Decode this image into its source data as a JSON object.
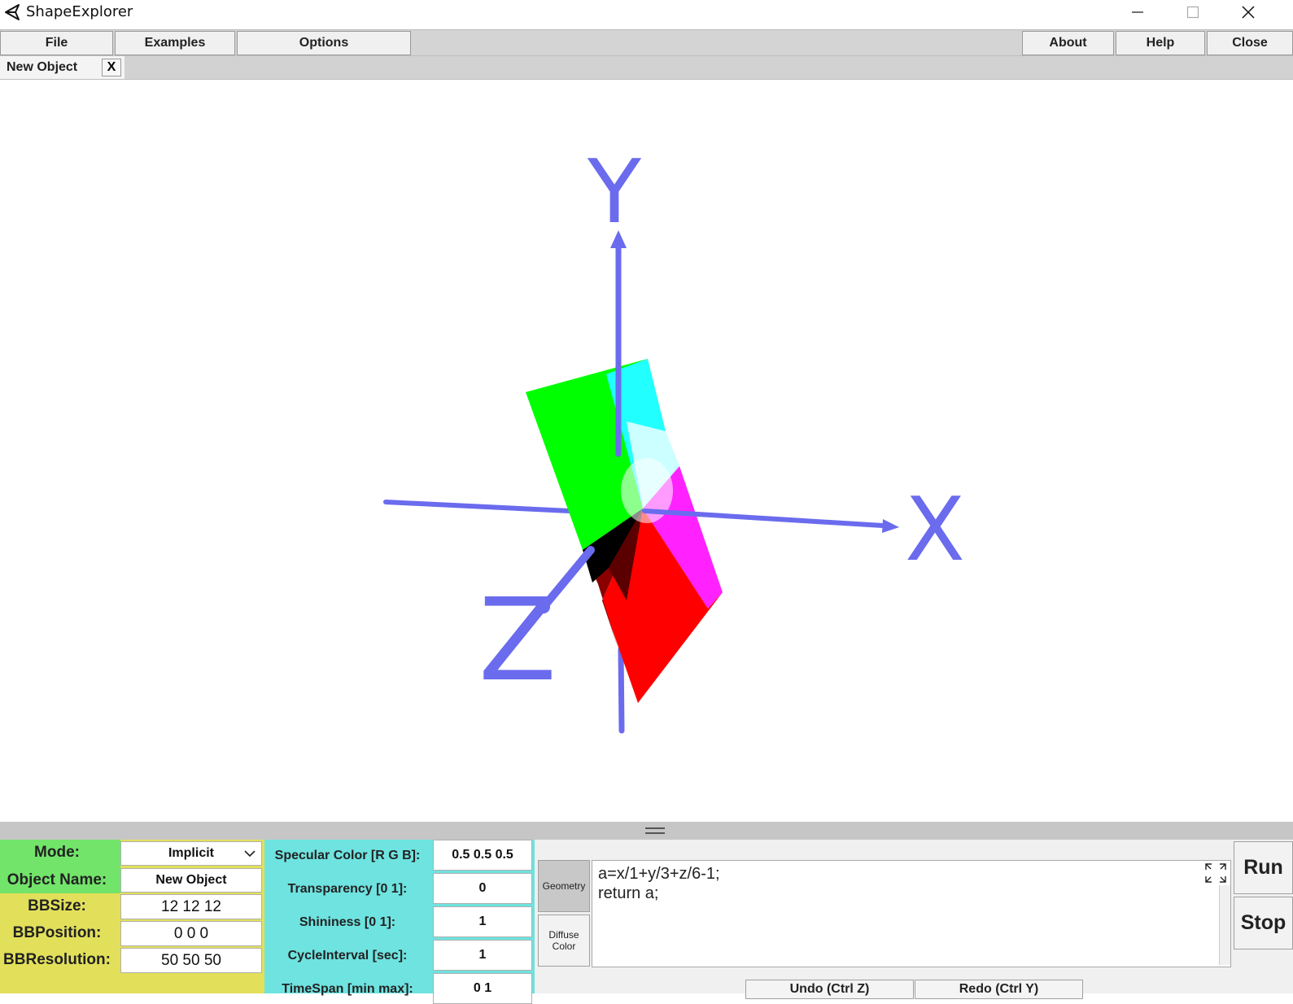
{
  "window": {
    "title": "ShapeExplorer"
  },
  "menu": {
    "file": "File",
    "examples": "Examples",
    "options": "Options",
    "about": "About",
    "help": "Help",
    "close": "Close"
  },
  "tabs": [
    {
      "label": "New Object",
      "close": "X"
    }
  ],
  "scene": {
    "axis_labels": {
      "x": "X",
      "y": "Y",
      "z": "Z"
    },
    "axis_color": "#6b6bee"
  },
  "properties": {
    "mode_label": "Mode:",
    "mode_value": "Implicit",
    "object_name_label": "Object Name:",
    "object_name_value": "New Object",
    "bbsize_label": "BBSize:",
    "bbsize_value": "12 12 12",
    "bbposition_label": "BBPosition:",
    "bbposition_value": "0 0 0",
    "bbresolution_label": "BBResolution:",
    "bbresolution_value": "50 50 50"
  },
  "material": {
    "specular_label": "Specular Color [R G B]:",
    "specular_value": "0.5 0.5 0.5",
    "transparency_label": "Transparency [0 1]:",
    "transparency_value": "0",
    "shininess_label": "Shininess [0 1]:",
    "shininess_value": "1",
    "cycle_label": "CycleInterval [sec]:",
    "cycle_value": "1",
    "timespan_label": "TimeSpan [min max]:",
    "timespan_value": "0 1"
  },
  "editor": {
    "geometry_tab": "Geometry",
    "diffuse_tab": "Diffuse Color",
    "code_lines": [
      "a=x/1+y/3+z/6-1;",
      "return a;"
    ],
    "run": "Run",
    "stop": "Stop",
    "undo": "Undo (Ctrl Z)",
    "redo": "Redo (Ctrl Y)"
  }
}
